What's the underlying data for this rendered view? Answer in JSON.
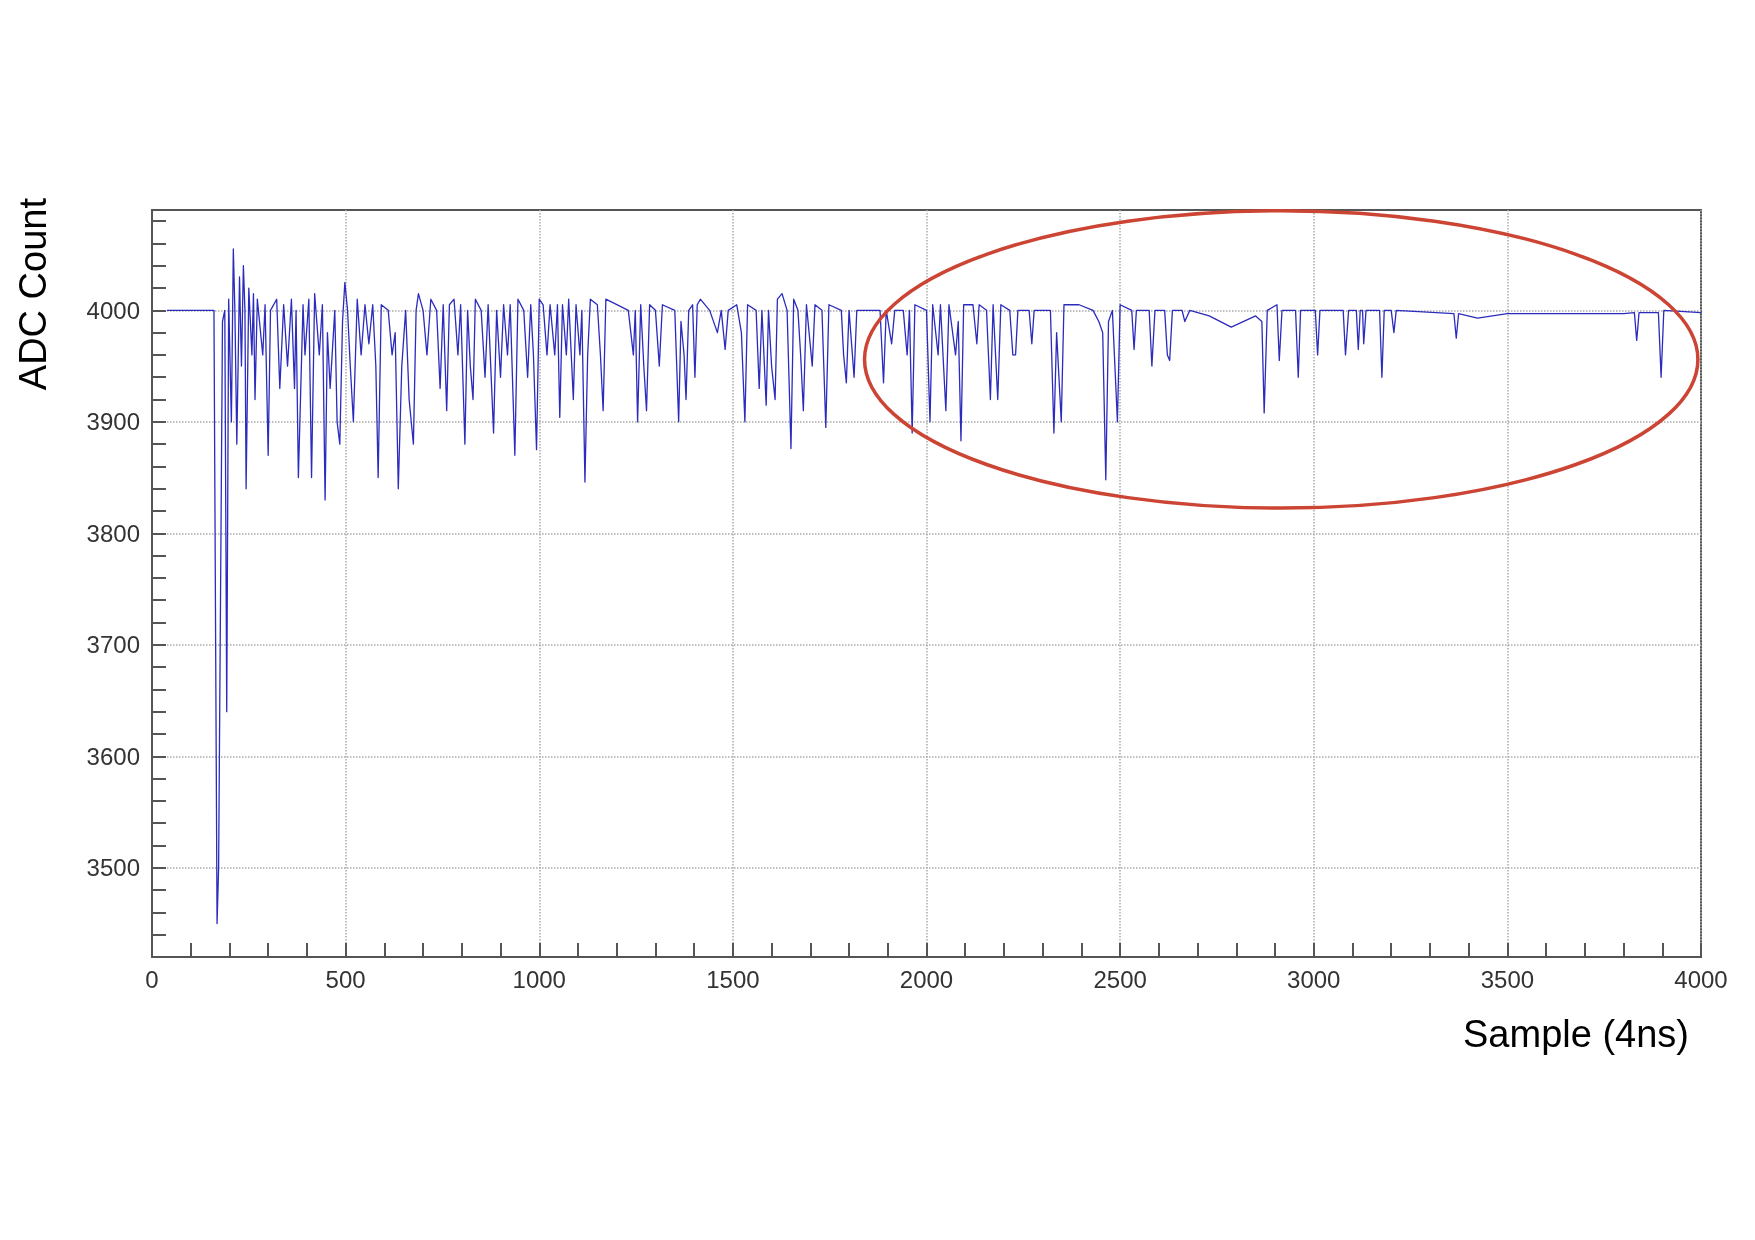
{
  "chart_data": {
    "type": "line",
    "xlabel": "Sample (4ns)",
    "ylabel": "ADC Count",
    "xlim": [
      0,
      4000
    ],
    "ylim": [
      3420,
      4090
    ],
    "xticks": [
      0,
      {
        "value": 100,
        "label": null
      },
      {
        "value": 200,
        "label": null
      },
      {
        "value": 300,
        "label": null
      },
      {
        "value": 400,
        "label": null
      },
      500,
      {
        "value": 600,
        "label": null
      },
      {
        "value": 700,
        "label": null
      },
      {
        "value": 800,
        "label": null
      },
      {
        "value": 900,
        "label": null
      },
      1000,
      {
        "value": 1100,
        "label": null
      },
      {
        "value": 1200,
        "label": null
      },
      {
        "value": 1300,
        "label": null
      },
      {
        "value": 1400,
        "label": null
      },
      1500,
      {
        "value": 1600,
        "label": null
      },
      {
        "value": 1700,
        "label": null
      },
      {
        "value": 1800,
        "label": null
      },
      {
        "value": 1900,
        "label": null
      },
      2000,
      {
        "value": 2100,
        "label": null
      },
      {
        "value": 2200,
        "label": null
      },
      {
        "value": 2300,
        "label": null
      },
      {
        "value": 2400,
        "label": null
      },
      2500,
      {
        "value": 2600,
        "label": null
      },
      {
        "value": 2700,
        "label": null
      },
      {
        "value": 2800,
        "label": null
      },
      {
        "value": 2900,
        "label": null
      },
      3000,
      {
        "value": 3100,
        "label": null
      },
      {
        "value": 3200,
        "label": null
      },
      {
        "value": 3300,
        "label": null
      },
      {
        "value": 3400,
        "label": null
      },
      3500,
      {
        "value": 3600,
        "label": null
      },
      {
        "value": 3700,
        "label": null
      },
      {
        "value": 3800,
        "label": null
      },
      {
        "value": 3900,
        "label": null
      },
      4000
    ],
    "yticks": [
      {
        "value": 3420,
        "label": null
      },
      {
        "value": 3440,
        "label": null
      },
      {
        "value": 3460,
        "label": null
      },
      {
        "value": 3480,
        "label": null
      },
      3500,
      {
        "value": 3520,
        "label": null
      },
      {
        "value": 3540,
        "label": null
      },
      {
        "value": 3560,
        "label": null
      },
      {
        "value": 3580,
        "label": null
      },
      3600,
      {
        "value": 3620,
        "label": null
      },
      {
        "value": 3640,
        "label": null
      },
      {
        "value": 3660,
        "label": null
      },
      {
        "value": 3680,
        "label": null
      },
      3700,
      {
        "value": 3720,
        "label": null
      },
      {
        "value": 3740,
        "label": null
      },
      {
        "value": 3760,
        "label": null
      },
      {
        "value": 3780,
        "label": null
      },
      3800,
      {
        "value": 3820,
        "label": null
      },
      {
        "value": 3840,
        "label": null
      },
      {
        "value": 3860,
        "label": null
      },
      {
        "value": 3880,
        "label": null
      },
      3900,
      {
        "value": 3920,
        "label": null
      },
      {
        "value": 3940,
        "label": null
      },
      {
        "value": 3960,
        "label": null
      },
      {
        "value": 3980,
        "label": null
      },
      4000,
      {
        "value": 4020,
        "label": null
      },
      {
        "value": 4040,
        "label": null
      },
      {
        "value": 4060,
        "label": null
      },
      {
        "value": 4080,
        "label": null
      }
    ],
    "grid": true,
    "marker": "none",
    "line_style": "solid",
    "series": [
      {
        "color": "#2b2bbd",
        "x": [
          40,
          160,
          168,
          172,
          182,
          188,
          193,
          198,
          205,
          210,
          214,
          219,
          226,
          231,
          236,
          240,
          243,
          250,
          258,
          262,
          266,
          272,
          286,
          292,
          300,
          306,
          322,
          330,
          340,
          350,
          360,
          368,
          372,
          378,
          390,
          395,
          405,
          412,
          420,
          432,
          440,
          447,
          453,
          460,
          472,
          478,
          485,
          492,
          498,
          505,
          512,
          520,
          530,
          540,
          550,
          560,
          570,
          578,
          584,
          592,
          610,
          620,
          628,
          636,
          645,
          655,
          664,
          675,
          682,
          688,
          700,
          710,
          720,
          735,
          744,
          752,
          761,
          768,
          780,
          790,
          797,
          808,
          815,
          822,
          829,
          835,
          850,
          860,
          868,
          882,
          890,
          900,
          908,
          918,
          925,
          937,
          945,
          960,
          970,
          978,
          985,
          993,
          1000,
          1010,
          1020,
          1028,
          1040,
          1047,
          1053,
          1060,
          1070,
          1076,
          1088,
          1095,
          1105,
          1110,
          1118,
          1125,
          1132,
          1150,
          1158,
          1165,
          1172,
          1230,
          1243,
          1248,
          1254,
          1262,
          1270,
          1277,
          1285,
          1300,
          1310,
          1318,
          1350,
          1360,
          1366,
          1374,
          1379,
          1386,
          1396,
          1402,
          1408,
          1416,
          1440,
          1460,
          1470,
          1480,
          1488,
          1510,
          1522,
          1531,
          1538,
          1560,
          1568,
          1575,
          1586,
          1592,
          1600,
          1609,
          1615,
          1627,
          1640,
          1650,
          1657,
          1668,
          1675,
          1682,
          1690,
          1705,
          1712,
          1730,
          1740,
          1748,
          1780,
          1786,
          1793,
          1800,
          1813,
          1820,
          1880,
          1889,
          1896,
          1910,
          1918,
          1940,
          1950,
          1956,
          1963,
          1970,
          2000,
          2009,
          2016,
          2030,
          2036,
          2050,
          2058,
          2075,
          2082,
          2089,
          2096,
          2120,
          2130,
          2136,
          2155,
          2165,
          2172,
          2184,
          2192,
          2215,
          2223,
          2230,
          2236,
          2265,
          2272,
          2278,
          2320,
          2329,
          2336,
          2348,
          2355,
          2394,
          2430,
          2445,
          2455,
          2463,
          2470,
          2480,
          2493,
          2500,
          2530,
          2536,
          2542,
          2575,
          2582,
          2590,
          2615,
          2622,
          2628,
          2635,
          2660,
          2667,
          2680,
          2730,
          2787,
          2850,
          2866,
          2872,
          2880,
          2905,
          2911,
          2918,
          2953,
          2960,
          2966,
          3004,
          3010,
          3016,
          3076,
          3082,
          3090,
          3110,
          3115,
          3120,
          3126,
          3129,
          3135,
          3170,
          3176,
          3182,
          3200,
          3207,
          3213,
          3362,
          3368,
          3374,
          3423,
          3500,
          3800,
          3828,
          3834,
          3840,
          3890,
          3897,
          3904,
          4000
        ],
        "values": [
          4000,
          4000,
          3450,
          3500,
          3990,
          4000,
          3640,
          4010,
          3900,
          4055,
          4000,
          3880,
          4030,
          3950,
          4040,
          4000,
          3840,
          4020,
          3960,
          4015,
          3920,
          4010,
          3960,
          4005,
          3870,
          4000,
          4010,
          3930,
          4005,
          3950,
          4010,
          3930,
          4000,
          3850,
          4005,
          3960,
          4010,
          3850,
          4015,
          3960,
          4005,
          3830,
          3980,
          3930,
          4000,
          3900,
          3880,
          3990,
          4025,
          4000,
          3950,
          3900,
          4010,
          3960,
          4005,
          3970,
          4005,
          3950,
          3850,
          4005,
          4000,
          3960,
          3980,
          3840,
          3950,
          4000,
          3920,
          3880,
          4000,
          4015,
          4000,
          3960,
          4010,
          4000,
          3930,
          4005,
          3910,
          4005,
          4010,
          3960,
          4005,
          3880,
          4000,
          3950,
          3920,
          4010,
          4000,
          3940,
          4005,
          3890,
          4000,
          3940,
          4005,
          3960,
          4005,
          3870,
          4010,
          4000,
          3940,
          4005,
          3960,
          3875,
          4010,
          4005,
          3960,
          4005,
          3960,
          4005,
          3904,
          4005,
          3960,
          4010,
          3920,
          4005,
          3960,
          4000,
          3846,
          3960,
          4010,
          4005,
          3960,
          3910,
          4010,
          4000,
          3960,
          4000,
          3900,
          4005,
          3950,
          3910,
          4005,
          4000,
          3950,
          4005,
          4000,
          3900,
          3990,
          3960,
          3920,
          4000,
          4005,
          3940,
          4005,
          4010,
          4000,
          3980,
          4000,
          3965,
          4000,
          4005,
          3980,
          3900,
          4005,
          4000,
          3930,
          4000,
          3915,
          4000,
          3950,
          3920,
          4010,
          4015,
          4000,
          3876,
          4010,
          4000,
          3960,
          3910,
          4005,
          3950,
          4005,
          4000,
          3895,
          4005,
          4000,
          3960,
          3935,
          4000,
          3940,
          4000,
          4000,
          3935,
          4000,
          3970,
          4000,
          4000,
          3960,
          4000,
          3890,
          4005,
          4000,
          3900,
          4005,
          3960,
          4005,
          3910,
          4005,
          3960,
          3990,
          3883,
          4005,
          4005,
          3970,
          4005,
          4000,
          3920,
          4005,
          3920,
          4005,
          4000,
          3960,
          3960,
          4000,
          4000,
          3970,
          4000,
          4000,
          3890,
          3980,
          3900,
          4005,
          4005,
          4000,
          3990,
          3980,
          3848,
          3990,
          4000,
          3900,
          4005,
          4000,
          3965,
          4000,
          4000,
          3950,
          4000,
          4000,
          3960,
          3955,
          4000,
          4000,
          3990,
          4000,
          3995,
          3985,
          3995,
          3990,
          3908,
          4000,
          4005,
          3955,
          4000,
          4000,
          3940,
          4000,
          4000,
          3960,
          4000,
          4000,
          3960,
          4000,
          4000,
          3965,
          4000,
          4000,
          3970,
          4000,
          4000,
          3940,
          4000,
          4000,
          3980,
          4000,
          3997,
          3975,
          3997,
          3993,
          3997,
          3997,
          3998,
          3973,
          3998,
          3998,
          3940,
          4000,
          3998
        ]
      }
    ]
  }
}
